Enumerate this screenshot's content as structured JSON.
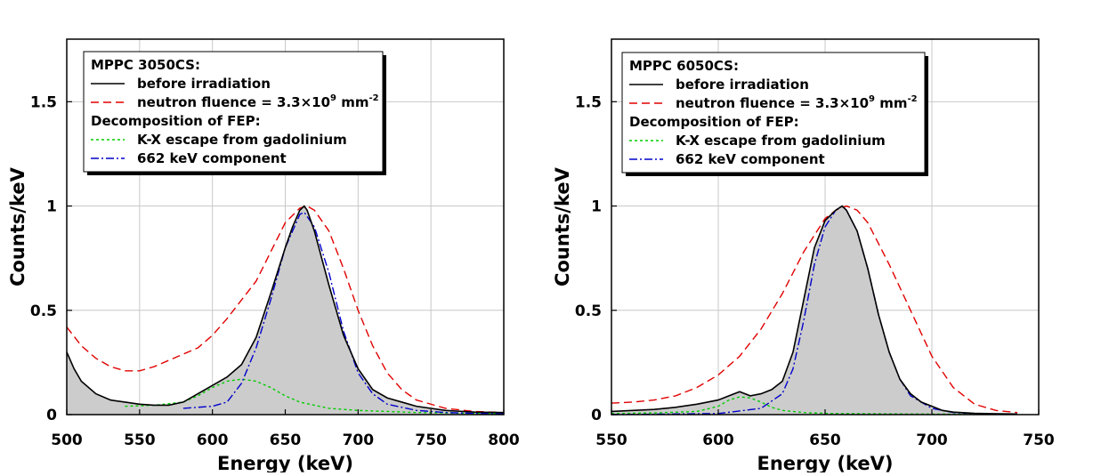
{
  "chart_data": [
    {
      "type": "line",
      "xlabel": "Energy (keV)",
      "ylabel": "Counts/keV",
      "xlim": [
        500,
        800
      ],
      "ylim": [
        0,
        1.8
      ],
      "xticks": [
        500,
        550,
        600,
        650,
        700,
        750,
        800
      ],
      "yticks": [
        0,
        0.5,
        1,
        1.5
      ],
      "ytick_labels": [
        "0",
        "0.5",
        "1",
        "1.5"
      ],
      "grid": true,
      "legend_position": "top-left",
      "legend": {
        "title": "MPPC 3050CS:",
        "section": "Decomposition of FEP:",
        "before": "before irradiation",
        "neutron_prefix": "neutron fluence = 3.3×10",
        "neutron_exp": "9",
        "neutron_unit": " mm",
        "neutron_unit_exp": "-2",
        "kx": "K-X escape from gadolinium",
        "comp662": "662 keV component"
      },
      "colors": {
        "before": "#000000",
        "neutron": "#e00000",
        "kx": "#00cc00",
        "comp662": "#0000cc",
        "fill": "#cccccc"
      },
      "series": [
        {
          "key": "before",
          "x": [
            500,
            505,
            510,
            520,
            530,
            540,
            550,
            560,
            570,
            580,
            590,
            600,
            610,
            620,
            630,
            640,
            650,
            655,
            660,
            663,
            665,
            670,
            680,
            690,
            700,
            710,
            720,
            730,
            740,
            760,
            780,
            800
          ],
          "y": [
            0.3,
            0.22,
            0.16,
            0.1,
            0.07,
            0.06,
            0.05,
            0.045,
            0.045,
            0.06,
            0.1,
            0.14,
            0.18,
            0.24,
            0.37,
            0.58,
            0.8,
            0.9,
            0.98,
            1.0,
            0.98,
            0.88,
            0.62,
            0.38,
            0.22,
            0.12,
            0.08,
            0.06,
            0.04,
            0.02,
            0.012,
            0.01
          ]
        },
        {
          "key": "neutron",
          "x": [
            500,
            510,
            520,
            530,
            540,
            550,
            560,
            570,
            580,
            590,
            600,
            610,
            620,
            630,
            640,
            650,
            660,
            665,
            670,
            680,
            690,
            700,
            710,
            720,
            730,
            740,
            760,
            780,
            800
          ],
          "y": [
            0.42,
            0.33,
            0.27,
            0.23,
            0.21,
            0.21,
            0.23,
            0.26,
            0.29,
            0.32,
            0.38,
            0.46,
            0.55,
            0.64,
            0.78,
            0.92,
            0.99,
            1.0,
            0.98,
            0.88,
            0.7,
            0.5,
            0.33,
            0.2,
            0.12,
            0.07,
            0.03,
            0.015,
            0.01
          ]
        },
        {
          "key": "kx",
          "x": [
            540,
            560,
            580,
            590,
            600,
            610,
            620,
            630,
            640,
            650,
            660,
            680,
            700,
            720,
            740,
            760,
            780,
            800
          ],
          "y": [
            0.04,
            0.045,
            0.06,
            0.09,
            0.13,
            0.16,
            0.17,
            0.16,
            0.13,
            0.09,
            0.06,
            0.03,
            0.02,
            0.015,
            0.01,
            0.008,
            0.006,
            0.005
          ]
        },
        {
          "key": "comp662",
          "x": [
            580,
            600,
            610,
            620,
            630,
            640,
            650,
            660,
            663,
            670,
            680,
            690,
            700,
            710,
            720,
            740,
            760,
            780,
            800
          ],
          "y": [
            0.03,
            0.04,
            0.06,
            0.15,
            0.32,
            0.55,
            0.8,
            0.96,
            0.97,
            0.9,
            0.68,
            0.4,
            0.2,
            0.1,
            0.05,
            0.02,
            0.01,
            0.006,
            0.005
          ]
        }
      ]
    },
    {
      "type": "line",
      "xlabel": "Energy (keV)",
      "ylabel": "Counts/keV",
      "xlim": [
        550,
        750
      ],
      "ylim": [
        0,
        1.8
      ],
      "xticks": [
        550,
        600,
        650,
        700,
        750
      ],
      "yticks": [
        0,
        0.5,
        1,
        1.5
      ],
      "ytick_labels": [
        "0",
        "0.5",
        "1",
        "1.5"
      ],
      "grid": true,
      "legend_position": "top-left",
      "legend": {
        "title": "MPPC 6050CS:",
        "section": "Decomposition of FEP:",
        "before": "before irradiation",
        "neutron_prefix": "neutron fluence = 3.3×10",
        "neutron_exp": "9",
        "neutron_unit": " mm",
        "neutron_unit_exp": "-2",
        "kx": "K-X escape from gadolinium",
        "comp662": "662 keV component"
      },
      "colors": {
        "before": "#000000",
        "neutron": "#e00000",
        "kx": "#00cc00",
        "comp662": "#0000cc",
        "fill": "#cccccc"
      },
      "series": [
        {
          "key": "before",
          "x": [
            550,
            560,
            570,
            580,
            590,
            600,
            605,
            610,
            615,
            620,
            625,
            630,
            635,
            640,
            645,
            650,
            655,
            658,
            660,
            665,
            670,
            675,
            680,
            685,
            690,
            695,
            700,
            705,
            710,
            720,
            730,
            740
          ],
          "y": [
            0.015,
            0.02,
            0.025,
            0.035,
            0.05,
            0.07,
            0.09,
            0.11,
            0.09,
            0.1,
            0.12,
            0.16,
            0.3,
            0.55,
            0.8,
            0.93,
            0.98,
            1.0,
            0.98,
            0.88,
            0.7,
            0.48,
            0.3,
            0.17,
            0.1,
            0.06,
            0.04,
            0.02,
            0.012,
            0.006,
            0.004,
            0.003
          ]
        },
        {
          "key": "neutron",
          "x": [
            550,
            560,
            570,
            580,
            590,
            600,
            610,
            620,
            630,
            640,
            650,
            655,
            660,
            665,
            670,
            680,
            690,
            700,
            710,
            720,
            730,
            740
          ],
          "y": [
            0.055,
            0.06,
            0.07,
            0.09,
            0.13,
            0.19,
            0.28,
            0.41,
            0.58,
            0.78,
            0.94,
            0.98,
            1.0,
            0.98,
            0.92,
            0.72,
            0.5,
            0.28,
            0.13,
            0.05,
            0.02,
            0.01
          ]
        },
        {
          "key": "kx",
          "x": [
            550,
            570,
            590,
            600,
            605,
            610,
            615,
            620,
            625,
            630,
            640,
            650,
            670,
            690,
            710,
            730,
            740
          ],
          "y": [
            0.005,
            0.008,
            0.015,
            0.04,
            0.07,
            0.085,
            0.08,
            0.06,
            0.035,
            0.02,
            0.01,
            0.006,
            0.004,
            0.003,
            0.002,
            0.002,
            0.002
          ]
        },
        {
          "key": "comp662",
          "x": [
            550,
            600,
            620,
            630,
            635,
            640,
            645,
            650,
            655,
            658,
            660,
            665,
            670,
            675,
            680,
            685,
            690,
            700,
            710,
            720,
            740
          ],
          "y": [
            0.0,
            0.005,
            0.03,
            0.1,
            0.22,
            0.45,
            0.72,
            0.9,
            0.98,
            1.0,
            0.98,
            0.88,
            0.7,
            0.48,
            0.3,
            0.17,
            0.09,
            0.03,
            0.01,
            0.005,
            0.002
          ]
        }
      ]
    }
  ]
}
